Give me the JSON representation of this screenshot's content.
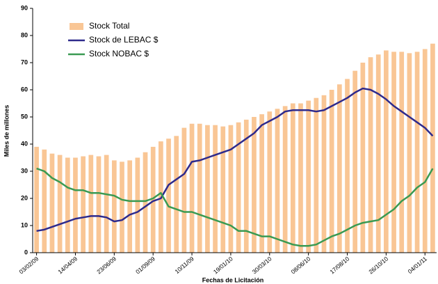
{
  "chart_data": {
    "type": "bar",
    "y_label": "Miles de millones",
    "x_label": "Fechas de Licitación",
    "categories": [
      "03/02/09",
      null,
      null,
      null,
      null,
      "14/04/09",
      null,
      null,
      null,
      null,
      "23/06/09",
      null,
      null,
      null,
      null,
      "01/09/09",
      null,
      null,
      null,
      null,
      "10/11/09",
      null,
      null,
      null,
      null,
      "19/01/10",
      null,
      null,
      null,
      null,
      "30/03/10",
      null,
      null,
      null,
      null,
      "08/06/10",
      null,
      null,
      null,
      null,
      "17/08/10",
      null,
      null,
      null,
      null,
      "26/10/10",
      null,
      null,
      null,
      null,
      "04/01/11",
      null
    ],
    "series": [
      {
        "name": "Stock Total",
        "type": "bar",
        "color": "#f9c695",
        "values": [
          39,
          38,
          36.5,
          36,
          35,
          35,
          35.5,
          36,
          35.5,
          36,
          34,
          33.5,
          34,
          35,
          37,
          39,
          41,
          42,
          43,
          46,
          47.5,
          47.5,
          47,
          47,
          46.5,
          47,
          48,
          49,
          50,
          51,
          52,
          53,
          54,
          55,
          55,
          56,
          57,
          58,
          60,
          62,
          64,
          67,
          70,
          72,
          73,
          74.5,
          74,
          74,
          73.5,
          74,
          75,
          77
        ]
      },
      {
        "name": "Stock de LEBAC $",
        "type": "line",
        "color": "#2e2a8c",
        "values": [
          8,
          8.5,
          9.5,
          10.5,
          11.5,
          12.5,
          13,
          13.5,
          13.5,
          13,
          11.5,
          12,
          14,
          15,
          17,
          19,
          20,
          25,
          27,
          29,
          33.5,
          34,
          35,
          36,
          37,
          38,
          40,
          42,
          44,
          47,
          48.5,
          50,
          52,
          52.5,
          52.5,
          52.5,
          52,
          52.5,
          54,
          55.5,
          57,
          59,
          60.5,
          60,
          58.5,
          56.5,
          54,
          52,
          50,
          48,
          46,
          43
        ]
      },
      {
        "name": "Stock NOBAC $",
        "type": "line",
        "color": "#3a9a52",
        "values": [
          31,
          30,
          27.5,
          26,
          24,
          23,
          23,
          22,
          22,
          21.5,
          21,
          19.5,
          19,
          19,
          19,
          20,
          22,
          17,
          16,
          15,
          15,
          14,
          13,
          12,
          11,
          10,
          8,
          8,
          7,
          6,
          6,
          5,
          4,
          3,
          2.5,
          2.5,
          3,
          4.5,
          6,
          7,
          8.5,
          10,
          11,
          11.5,
          12,
          14,
          16,
          19,
          21,
          24,
          26,
          31
        ]
      }
    ],
    "ylim": [
      0,
      90
    ],
    "yticks": [
      0,
      10,
      20,
      30,
      40,
      50,
      60,
      70,
      80,
      90
    ],
    "grid": false,
    "legend": "upper left"
  }
}
